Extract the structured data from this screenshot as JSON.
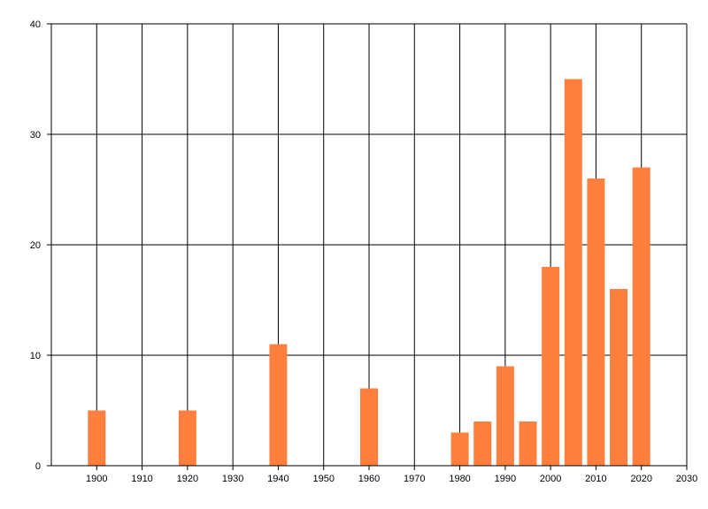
{
  "chart_data": {
    "type": "bar",
    "title": "",
    "xlabel": "",
    "ylabel": "",
    "x": [
      1900,
      1920,
      1940,
      1960,
      1980,
      1985,
      1990,
      1995,
      2000,
      2005,
      2010,
      2015,
      2020
    ],
    "values": [
      5,
      5,
      11,
      7,
      3,
      4,
      9,
      4,
      18,
      35,
      26,
      16,
      27
    ],
    "xlim": [
      1890,
      2030
    ],
    "ylim": [
      0,
      40
    ],
    "x_ticks": [
      1900,
      1910,
      1920,
      1930,
      1940,
      1950,
      1960,
      1970,
      1980,
      1990,
      2000,
      2010,
      2020,
      2030
    ],
    "y_ticks": [
      0,
      10,
      20,
      30,
      40
    ],
    "grid": true,
    "bar_color": "#ff7f3f",
    "grid_color": "#000000"
  }
}
